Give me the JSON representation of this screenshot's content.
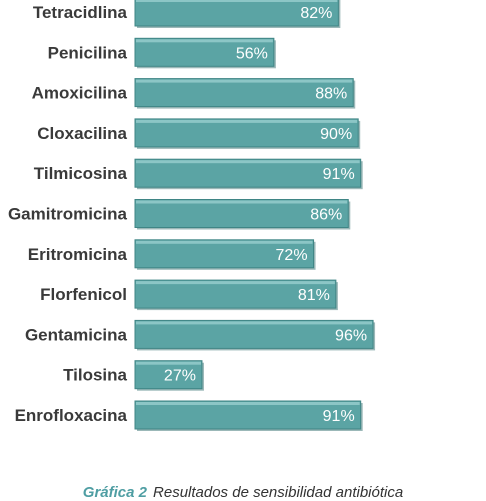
{
  "chart_data": {
    "type": "bar",
    "orientation": "horizontal",
    "categories": [
      "Tetracidlina",
      "Penicilina",
      "Amoxicilina",
      "Cloxacilina",
      "Tilmicosina",
      "Gamitromicina",
      "Eritromicina",
      "Florfenicol",
      "Gentamicina",
      "Tilosina",
      "Enrofloxacina"
    ],
    "values": [
      82,
      56,
      88,
      90,
      91,
      86,
      72,
      81,
      96,
      27,
      91
    ],
    "value_labels": [
      "82%",
      "56%",
      "88%",
      "90%",
      "91%",
      "86%",
      "72%",
      "81%",
      "96%",
      "27%",
      "91%"
    ],
    "xlim": [
      0,
      100
    ],
    "grid": false,
    "bar_color": "#5ba4a4",
    "bar_border_color": "#3f8585"
  },
  "caption": {
    "lead": "Gráfica 2",
    "text": "Resultados de sensibilidad antibiótica"
  }
}
